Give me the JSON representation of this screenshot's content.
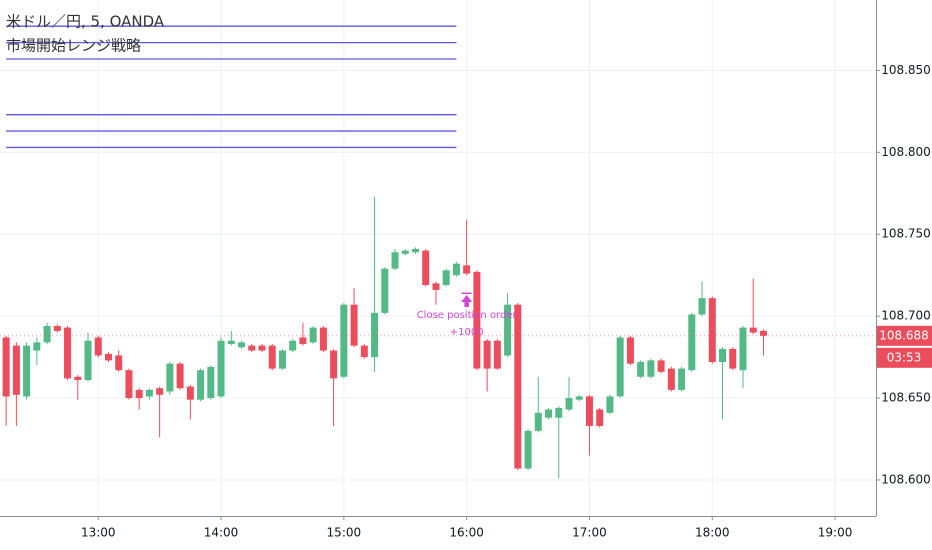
{
  "chart_data": {
    "type": "candlestick",
    "title": "米ドル／円, 5, OANDA",
    "subtitle": "市場開始レンジ戦略",
    "x": [
      "12:15",
      "12:20",
      "12:25",
      "12:30",
      "12:35",
      "12:40",
      "12:45",
      "12:50",
      "12:55",
      "13:00",
      "13:05",
      "13:10",
      "13:15",
      "13:20",
      "13:25",
      "13:30",
      "13:35",
      "13:40",
      "13:45",
      "13:50",
      "13:55",
      "14:00",
      "14:05",
      "14:10",
      "14:15",
      "14:20",
      "14:25",
      "14:30",
      "14:35",
      "14:40",
      "14:45",
      "14:50",
      "14:55",
      "15:00",
      "15:05",
      "15:10",
      "15:15",
      "15:20",
      "15:25",
      "15:30",
      "15:35",
      "15:40",
      "15:45",
      "15:50",
      "15:55",
      "16:00",
      "16:05",
      "16:10",
      "16:15",
      "16:20",
      "16:25",
      "16:30",
      "16:35",
      "16:40",
      "16:45",
      "16:50",
      "16:55",
      "17:00",
      "17:05",
      "17:10",
      "17:15",
      "17:20",
      "17:25",
      "17:30",
      "17:35",
      "17:40",
      "17:45",
      "17:50",
      "17:55",
      "18:00",
      "18:05",
      "18:10",
      "18:15",
      "18:20",
      "18:25"
    ],
    "open": [
      108.687,
      108.682,
      108.651,
      108.679,
      108.684,
      108.694,
      108.693,
      108.663,
      108.661,
      108.687,
      108.677,
      108.676,
      108.667,
      108.655,
      108.651,
      108.656,
      108.654,
      108.671,
      108.657,
      108.649,
      108.65,
      108.651,
      108.683,
      108.681,
      108.682,
      108.682,
      108.682,
      108.668,
      108.679,
      108.687,
      108.684,
      108.693,
      108.679,
      108.663,
      108.707,
      108.682,
      108.675,
      108.702,
      108.729,
      108.738,
      108.739,
      108.74,
      108.72,
      108.719,
      108.725,
      108.731,
      108.727,
      108.685,
      108.685,
      108.676,
      108.707,
      108.607,
      108.63,
      108.638,
      108.638,
      108.643,
      108.649,
      108.651,
      108.643,
      108.641,
      108.651,
      108.687,
      108.663,
      108.663,
      108.673,
      108.668,
      108.655,
      108.667,
      108.701,
      108.711,
      108.672,
      108.68,
      108.667,
      108.693,
      108.691
    ],
    "high": [
      108.688,
      108.684,
      108.684,
      108.687,
      108.696,
      108.695,
      108.694,
      108.664,
      108.69,
      108.688,
      108.678,
      108.679,
      108.668,
      108.656,
      108.656,
      108.657,
      108.672,
      108.672,
      108.658,
      108.668,
      108.67,
      108.687,
      108.691,
      108.685,
      108.683,
      108.683,
      108.683,
      108.68,
      108.686,
      108.696,
      108.694,
      108.694,
      108.68,
      108.708,
      108.717,
      108.683,
      108.773,
      108.73,
      108.741,
      108.741,
      108.742,
      108.741,
      108.721,
      108.729,
      108.733,
      108.759,
      108.728,
      108.686,
      108.686,
      108.714,
      108.708,
      108.631,
      108.663,
      108.644,
      108.645,
      108.663,
      108.652,
      108.652,
      108.644,
      108.652,
      108.688,
      108.688,
      108.673,
      108.674,
      108.674,
      108.669,
      108.669,
      108.702,
      108.721,
      108.712,
      108.681,
      108.681,
      108.694,
      108.723,
      108.692
    ],
    "low": [
      108.633,
      108.633,
      108.649,
      108.67,
      108.683,
      108.69,
      108.661,
      108.649,
      108.66,
      108.675,
      108.672,
      108.666,
      108.649,
      108.643,
      108.649,
      108.626,
      108.652,
      108.655,
      108.637,
      108.648,
      108.649,
      108.65,
      108.682,
      108.68,
      108.678,
      108.678,
      108.667,
      108.667,
      108.678,
      108.682,
      108.683,
      108.678,
      108.633,
      108.662,
      108.681,
      108.674,
      108.666,
      108.701,
      108.728,
      108.737,
      108.738,
      108.718,
      108.707,
      108.718,
      108.724,
      108.725,
      108.667,
      108.654,
      108.667,
      108.675,
      108.606,
      108.606,
      108.629,
      108.637,
      108.601,
      108.642,
      108.648,
      108.615,
      108.632,
      108.64,
      108.65,
      108.67,
      108.662,
      108.662,
      108.665,
      108.654,
      108.654,
      108.666,
      108.7,
      108.671,
      108.637,
      108.667,
      108.656,
      108.689,
      108.676
    ],
    "close": [
      108.651,
      108.652,
      108.682,
      108.684,
      108.694,
      108.691,
      108.662,
      108.661,
      108.685,
      108.676,
      108.673,
      108.667,
      108.65,
      108.65,
      108.655,
      108.652,
      108.671,
      108.656,
      108.649,
      108.667,
      108.669,
      108.685,
      108.685,
      108.684,
      108.679,
      108.679,
      108.668,
      108.679,
      108.685,
      108.683,
      108.693,
      108.679,
      108.662,
      108.707,
      108.682,
      108.675,
      108.702,
      108.729,
      108.739,
      108.74,
      108.741,
      108.719,
      108.716,
      108.728,
      108.732,
      108.726,
      108.668,
      108.668,
      108.668,
      108.707,
      108.607,
      108.63,
      108.641,
      108.643,
      108.644,
      108.65,
      108.651,
      108.633,
      108.633,
      108.651,
      108.687,
      108.671,
      108.672,
      108.673,
      108.666,
      108.655,
      108.668,
      108.701,
      108.711,
      108.672,
      108.68,
      108.668,
      108.693,
      108.69,
      108.688
    ],
    "up_color": "#53b987",
    "down_color": "#eb4d5c",
    "xlim": [
      "12:12",
      "19:20"
    ],
    "xticks": [
      "13:00",
      "14:00",
      "15:00",
      "16:00",
      "17:00",
      "18:00",
      "19:00"
    ],
    "ylim": [
      108.578,
      108.893
    ],
    "yticks": [
      {
        "value": 108.6,
        "label": "108.600"
      },
      {
        "value": 108.65,
        "label": "108.650"
      },
      {
        "value": 108.7,
        "label": "108.700"
      },
      {
        "value": 108.75,
        "label": "108.750"
      },
      {
        "value": 108.8,
        "label": "108.800"
      },
      {
        "value": 108.85,
        "label": "108.850"
      }
    ],
    "grid": true,
    "levels": {
      "color": "#5b5bdb",
      "start": "12:15",
      "end": "15:55",
      "values": [
        108.877,
        108.867,
        108.857,
        108.823,
        108.813,
        108.803
      ]
    },
    "annotation": {
      "x": "16:00",
      "value": 108.714,
      "color": "#d046d6",
      "text": "Close position order",
      "detail": "+1000"
    },
    "last_price": 108.688,
    "countdown": "03:53"
  }
}
